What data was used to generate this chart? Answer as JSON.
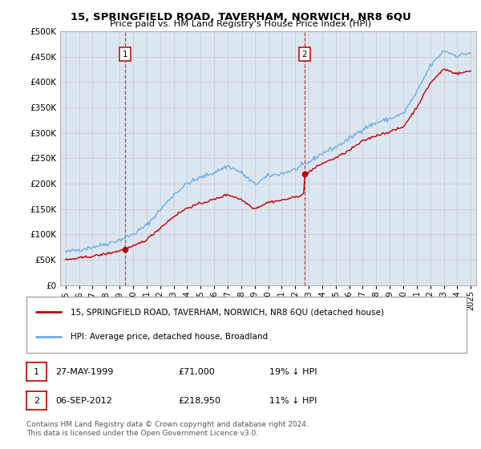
{
  "title": "15, SPRINGFIELD ROAD, TAVERHAM, NORWICH, NR8 6QU",
  "subtitle": "Price paid vs. HM Land Registry's House Price Index (HPI)",
  "legend_line1": "15, SPRINGFIELD ROAD, TAVERHAM, NORWICH, NR8 6QU (detached house)",
  "legend_line2": "HPI: Average price, detached house, Broadland",
  "annotation1_date": "27-MAY-1999",
  "annotation1_price": "£71,000",
  "annotation1_hpi": "19% ↓ HPI",
  "annotation2_date": "06-SEP-2012",
  "annotation2_price": "£218,950",
  "annotation2_hpi": "11% ↓ HPI",
  "footer": "Contains HM Land Registry data © Crown copyright and database right 2024.\nThis data is licensed under the Open Government Licence v3.0.",
  "hpi_color": "#6aaee8",
  "price_color": "#c00000",
  "annotation_color": "#c00000",
  "background_color": "#dce6f1",
  "grid_color": "#c8c8c8",
  "sale1_year": 1999.4,
  "sale1_price": 71000,
  "sale2_year": 2012.68,
  "sale2_price": 218950,
  "ylim": [
    0,
    500000
  ],
  "xlim_start": 1994.6,
  "xlim_end": 2025.4
}
